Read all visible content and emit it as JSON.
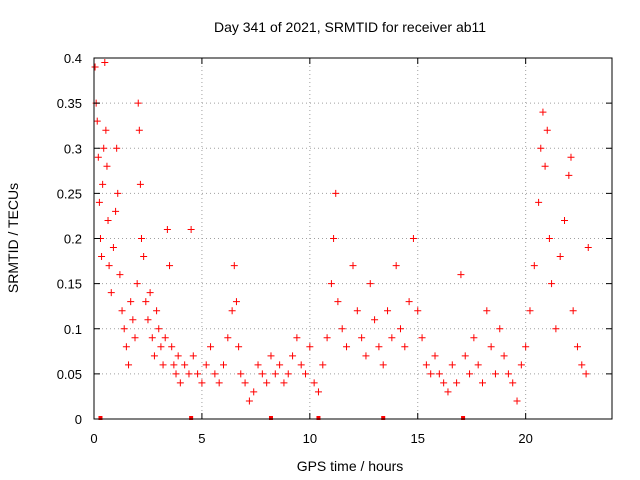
{
  "chart_data": {
    "type": "scatter",
    "title": "Day 341 of 2021, SRMTID for receiver ab11",
    "xlabel": "GPS time / hours",
    "ylabel": "SRMTID / TECUs",
    "xlim": [
      0,
      24
    ],
    "ylim": [
      0,
      0.4
    ],
    "xticks": [
      0,
      5,
      10,
      15,
      20
    ],
    "xtick_labels": [
      "0",
      "5",
      "10",
      "15",
      "20"
    ],
    "yticks": [
      0,
      0.05,
      0.1,
      0.15,
      0.2,
      0.25,
      0.3,
      0.35,
      0.4
    ],
    "ytick_labels": [
      "0",
      "0.05",
      "0.1",
      "0.15",
      "0.2",
      "0.25",
      "0.3",
      "0.35",
      "0.4"
    ],
    "grid": true,
    "marker": "+",
    "color": "#ff0000",
    "series": [
      {
        "name": "SRMTID",
        "points": [
          [
            0.05,
            0.39
          ],
          [
            0.1,
            0.35
          ],
          [
            0.15,
            0.33
          ],
          [
            0.2,
            0.29
          ],
          [
            0.25,
            0.24
          ],
          [
            0.3,
            0.2
          ],
          [
            0.35,
            0.18
          ],
          [
            0.4,
            0.26
          ],
          [
            0.45,
            0.3
          ],
          [
            0.5,
            0.395
          ],
          [
            0.55,
            0.32
          ],
          [
            0.6,
            0.28
          ],
          [
            0.65,
            0.22
          ],
          [
            0.7,
            0.17
          ],
          [
            0.8,
            0.14
          ],
          [
            0.9,
            0.19
          ],
          [
            1.0,
            0.23
          ],
          [
            1.05,
            0.3
          ],
          [
            1.1,
            0.25
          ],
          [
            1.2,
            0.16
          ],
          [
            1.3,
            0.12
          ],
          [
            1.4,
            0.1
          ],
          [
            1.5,
            0.08
          ],
          [
            1.6,
            0.06
          ],
          [
            1.7,
            0.13
          ],
          [
            1.8,
            0.11
          ],
          [
            1.9,
            0.09
          ],
          [
            2.0,
            0.15
          ],
          [
            2.05,
            0.35
          ],
          [
            2.1,
            0.32
          ],
          [
            2.15,
            0.26
          ],
          [
            2.2,
            0.2
          ],
          [
            2.3,
            0.18
          ],
          [
            2.4,
            0.13
          ],
          [
            2.5,
            0.11
          ],
          [
            2.6,
            0.14
          ],
          [
            2.7,
            0.09
          ],
          [
            2.8,
            0.07
          ],
          [
            2.9,
            0.12
          ],
          [
            3.0,
            0.1
          ],
          [
            3.1,
            0.08
          ],
          [
            3.2,
            0.06
          ],
          [
            3.3,
            0.09
          ],
          [
            3.4,
            0.21
          ],
          [
            3.5,
            0.17
          ],
          [
            3.6,
            0.08
          ],
          [
            3.7,
            0.06
          ],
          [
            3.8,
            0.05
          ],
          [
            3.9,
            0.07
          ],
          [
            4.0,
            0.04
          ],
          [
            4.2,
            0.06
          ],
          [
            4.4,
            0.05
          ],
          [
            4.5,
            0.21
          ],
          [
            4.6,
            0.07
          ],
          [
            4.8,
            0.05
          ],
          [
            5.0,
            0.04
          ],
          [
            5.2,
            0.06
          ],
          [
            5.4,
            0.08
          ],
          [
            5.6,
            0.05
          ],
          [
            5.8,
            0.04
          ],
          [
            6.0,
            0.06
          ],
          [
            6.2,
            0.09
          ],
          [
            6.4,
            0.12
          ],
          [
            6.5,
            0.17
          ],
          [
            6.6,
            0.13
          ],
          [
            6.7,
            0.08
          ],
          [
            6.8,
            0.05
          ],
          [
            7.0,
            0.04
          ],
          [
            7.2,
            0.02
          ],
          [
            7.4,
            0.03
          ],
          [
            7.6,
            0.06
          ],
          [
            7.8,
            0.05
          ],
          [
            8.0,
            0.04
          ],
          [
            8.2,
            0.07
          ],
          [
            8.4,
            0.05
          ],
          [
            8.6,
            0.06
          ],
          [
            8.8,
            0.04
          ],
          [
            9.0,
            0.05
          ],
          [
            9.2,
            0.07
          ],
          [
            9.4,
            0.09
          ],
          [
            9.6,
            0.06
          ],
          [
            9.8,
            0.05
          ],
          [
            10.0,
            0.08
          ],
          [
            10.2,
            0.04
          ],
          [
            10.4,
            0.03
          ],
          [
            10.6,
            0.06
          ],
          [
            10.8,
            0.09
          ],
          [
            11.0,
            0.15
          ],
          [
            11.1,
            0.2
          ],
          [
            11.2,
            0.25
          ],
          [
            11.3,
            0.13
          ],
          [
            11.5,
            0.1
          ],
          [
            11.7,
            0.08
          ],
          [
            12.0,
            0.17
          ],
          [
            12.2,
            0.12
          ],
          [
            12.4,
            0.09
          ],
          [
            12.6,
            0.07
          ],
          [
            12.8,
            0.15
          ],
          [
            13.0,
            0.11
          ],
          [
            13.2,
            0.08
          ],
          [
            13.4,
            0.06
          ],
          [
            13.6,
            0.12
          ],
          [
            13.8,
            0.09
          ],
          [
            14.0,
            0.17
          ],
          [
            14.2,
            0.1
          ],
          [
            14.4,
            0.08
          ],
          [
            14.6,
            0.13
          ],
          [
            14.8,
            0.2
          ],
          [
            15.0,
            0.12
          ],
          [
            15.2,
            0.09
          ],
          [
            15.4,
            0.06
          ],
          [
            15.6,
            0.05
          ],
          [
            15.8,
            0.07
          ],
          [
            16.0,
            0.05
          ],
          [
            16.2,
            0.04
          ],
          [
            16.4,
            0.03
          ],
          [
            16.6,
            0.06
          ],
          [
            16.8,
            0.04
          ],
          [
            17.0,
            0.16
          ],
          [
            17.2,
            0.07
          ],
          [
            17.4,
            0.05
          ],
          [
            17.6,
            0.09
          ],
          [
            17.8,
            0.06
          ],
          [
            18.0,
            0.04
          ],
          [
            18.2,
            0.12
          ],
          [
            18.4,
            0.08
          ],
          [
            18.6,
            0.05
          ],
          [
            18.8,
            0.1
          ],
          [
            19.0,
            0.07
          ],
          [
            19.2,
            0.05
          ],
          [
            19.4,
            0.04
          ],
          [
            19.6,
            0.02
          ],
          [
            19.8,
            0.06
          ],
          [
            20.0,
            0.08
          ],
          [
            20.2,
            0.12
          ],
          [
            20.4,
            0.17
          ],
          [
            20.6,
            0.24
          ],
          [
            20.7,
            0.3
          ],
          [
            20.8,
            0.34
          ],
          [
            20.9,
            0.28
          ],
          [
            21.0,
            0.32
          ],
          [
            21.1,
            0.2
          ],
          [
            21.2,
            0.15
          ],
          [
            21.4,
            0.1
          ],
          [
            21.6,
            0.18
          ],
          [
            21.8,
            0.22
          ],
          [
            22.0,
            0.27
          ],
          [
            22.1,
            0.29
          ],
          [
            22.2,
            0.12
          ],
          [
            22.4,
            0.08
          ],
          [
            22.6,
            0.06
          ],
          [
            22.8,
            0.05
          ],
          [
            22.9,
            0.19
          ]
        ]
      }
    ],
    "axis_marks_x": [
      0.3,
      4.5,
      8.2,
      10.4,
      13.4,
      17.1
    ]
  }
}
